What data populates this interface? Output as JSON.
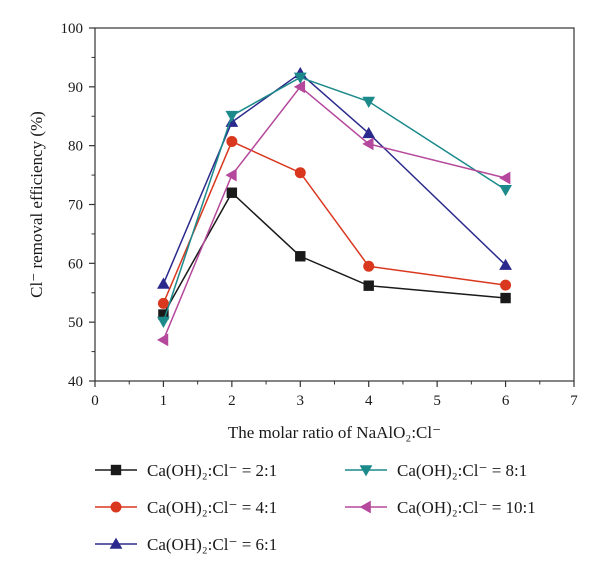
{
  "chart_data": {
    "type": "line",
    "xlabel": "The molar ratio of NaAlO₂:Cl⁻",
    "ylabel": "Cl⁻ removal efficiency (%)",
    "xlim": [
      0,
      7
    ],
    "ylim": [
      40,
      100
    ],
    "x_ticks": [
      "0",
      "1",
      "2",
      "3",
      "4",
      "5",
      "6",
      "7"
    ],
    "y_ticks": [
      "40",
      "50",
      "60",
      "70",
      "80",
      "90",
      "100"
    ],
    "grid": false,
    "legend_position": "below",
    "series": [
      {
        "name": "Ca(OH)₂:Cl⁻ = 2:1",
        "color": "#1a1a1a",
        "marker": "square",
        "x": [
          1,
          2,
          3,
          4,
          6
        ],
        "y": [
          51.3,
          72.0,
          61.2,
          56.2,
          54.1
        ]
      },
      {
        "name": "Ca(OH)₂:Cl⁻ = 4:1",
        "color": "#d9381e",
        "marker": "circle",
        "x": [
          1,
          2,
          3,
          4,
          6
        ],
        "y": [
          53.2,
          80.7,
          75.4,
          59.5,
          56.3
        ]
      },
      {
        "name": "Ca(OH)₂:Cl⁻ = 6:1",
        "color": "#2b2a8c",
        "marker": "triangle-up",
        "x": [
          1,
          2,
          3,
          4,
          6
        ],
        "y": [
          56.5,
          84.0,
          92.3,
          82.1,
          59.7
        ]
      },
      {
        "name": "Ca(OH)₂:Cl⁻ = 8:1",
        "color": "#1c8a8a",
        "marker": "triangle-down",
        "x": [
          1,
          2,
          3,
          4,
          6
        ],
        "y": [
          50.1,
          85.1,
          91.6,
          87.5,
          72.5
        ]
      },
      {
        "name": "Ca(OH)₂:Cl⁻ = 10:1",
        "color": "#b5489c",
        "marker": "triangle-left",
        "x": [
          1,
          2,
          3,
          4,
          6
        ],
        "y": [
          47.0,
          75.0,
          90.0,
          80.3,
          74.5
        ]
      }
    ]
  }
}
